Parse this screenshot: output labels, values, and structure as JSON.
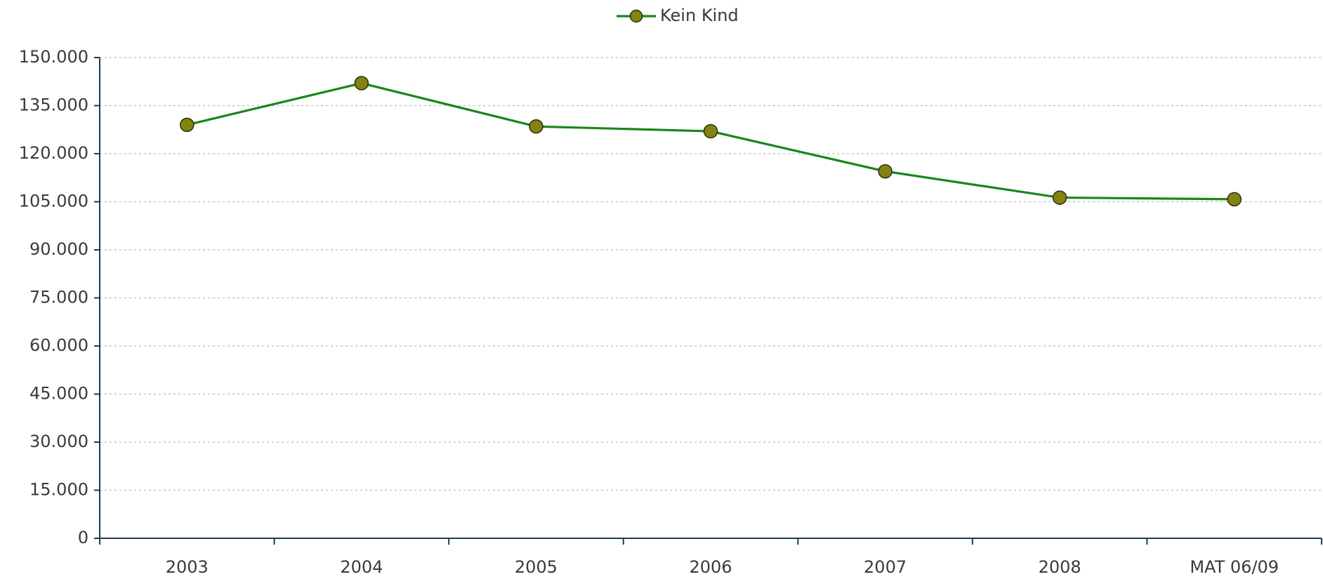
{
  "chart_data": {
    "type": "line",
    "categories": [
      "2003",
      "2004",
      "2005",
      "2006",
      "2007",
      "2008",
      "MAT 06/09"
    ],
    "series": [
      {
        "name": "Kein Kind",
        "color": "#1a861a",
        "marker_color": "#838312",
        "values": [
          129000,
          142000,
          128500,
          127000,
          114500,
          106300,
          105800
        ]
      }
    ],
    "ylim": [
      0,
      150000
    ],
    "yticks": [
      0,
      {
        "value": 15000,
        "label": "15.000"
      },
      {
        "value": 30000,
        "label": "30.000"
      },
      {
        "value": 45000,
        "label": "45.000"
      },
      {
        "value": 60000,
        "label": "60.000"
      },
      {
        "value": 75000,
        "label": "75.000"
      },
      {
        "value": 90000,
        "label": "90.000"
      },
      {
        "value": 105000,
        "label": "105.000"
      },
      {
        "value": 120000,
        "label": "120.000"
      },
      {
        "value": 135000,
        "label": "135.000"
      },
      {
        "value": 150000,
        "label": "150.000"
      }
    ],
    "grid": true,
    "legend": "top"
  }
}
